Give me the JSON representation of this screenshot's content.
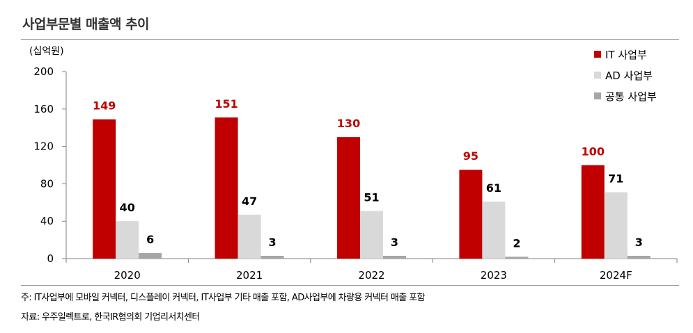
{
  "title": "사업부문별 매출액 추이",
  "unit_label": "(십억원)",
  "footnote": "주:  IT사업부에 모바일 커넥터, 디스플레이 커넥터, IT사업부 기타 매출 포함, AD사업부에 차량용 커넥터 매출 포함",
  "source": "자료: 우주일렉트로, 한국IR협의회 기업리서치센터",
  "chart_data": {
    "type": "bar",
    "title": "사업부문별 매출액 추이",
    "ylabel": "(십억원)",
    "categories": [
      "2020",
      "2021",
      "2022",
      "2023",
      "2024F"
    ],
    "ylim": [
      0,
      200
    ],
    "yticks": [
      0,
      40,
      80,
      120,
      160,
      200
    ],
    "grid": false,
    "legend_position": "top-right",
    "series": [
      {
        "name": "IT 사업부",
        "values": [
          149,
          151,
          130,
          95,
          100
        ],
        "color": "#c00000",
        "label_color": "#c00000"
      },
      {
        "name": "AD 사업부",
        "values": [
          40,
          47,
          51,
          61,
          71
        ],
        "color": "#d9d9d9",
        "label_color": "#000000"
      },
      {
        "name": "공통 사업부",
        "values": [
          6,
          3,
          3,
          2,
          3
        ],
        "color": "#a6a6a6",
        "label_color": "#000000"
      }
    ]
  }
}
